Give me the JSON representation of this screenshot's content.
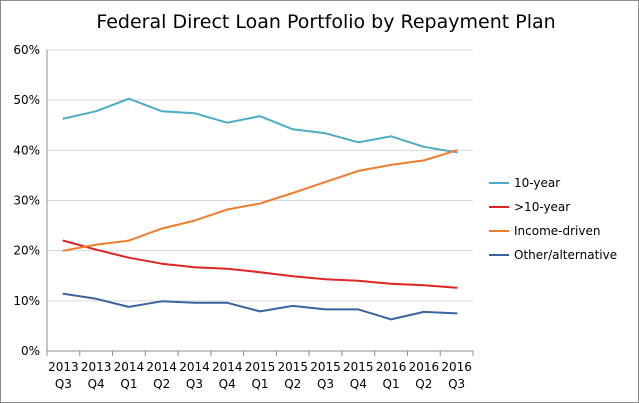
{
  "chart_data": {
    "type": "line",
    "title": "Federal Direct Loan Portfolio by Repayment Plan",
    "xlabel": "",
    "ylabel": "",
    "ylim": [
      0,
      60
    ],
    "yticks": [
      "0%",
      "10%",
      "20%",
      "30%",
      "40%",
      "50%",
      "60%"
    ],
    "grid": "horizontal",
    "legend": "right",
    "categories": [
      [
        "2013",
        "Q3"
      ],
      [
        "2013",
        "Q4"
      ],
      [
        "2014",
        "Q1"
      ],
      [
        "2014",
        "Q2"
      ],
      [
        "2014",
        "Q3"
      ],
      [
        "2014",
        "Q4"
      ],
      [
        "2015",
        "Q1"
      ],
      [
        "2015",
        "Q2"
      ],
      [
        "2015",
        "Q3"
      ],
      [
        "2015",
        "Q4"
      ],
      [
        "2016",
        "Q1"
      ],
      [
        "2016",
        "Q2"
      ],
      [
        "2016",
        "Q3"
      ]
    ],
    "series": [
      {
        "name": "10-year",
        "color": "#4bacc6",
        "values": [
          46.3,
          47.8,
          50.3,
          47.8,
          47.4,
          45.5,
          46.8,
          44.2,
          43.4,
          41.6,
          42.8,
          40.7,
          39.6
        ]
      },
      {
        "name": ">10-year",
        "color": "#e02424",
        "values": [
          22.0,
          20.2,
          18.6,
          17.4,
          16.7,
          16.4,
          15.7,
          14.9,
          14.3,
          14.0,
          13.4,
          13.1,
          12.6
        ]
      },
      {
        "name": "Income-driven",
        "color": "#f07d2e",
        "values": [
          20.0,
          21.2,
          22.0,
          24.4,
          26.0,
          28.2,
          29.4,
          31.5,
          33.7,
          35.9,
          37.1,
          38.0,
          40.0
        ]
      },
      {
        "name": "Other/alternative",
        "color": "#3a63a0",
        "values": [
          11.4,
          10.4,
          8.8,
          9.9,
          9.6,
          9.6,
          7.9,
          9.0,
          8.3,
          8.3,
          6.3,
          7.8,
          7.5
        ]
      }
    ]
  }
}
